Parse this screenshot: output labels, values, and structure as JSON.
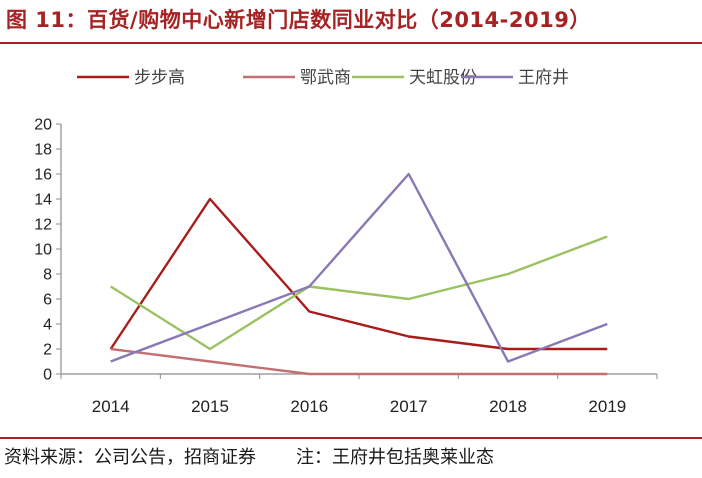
{
  "header": {
    "title": "图 11：百货/购物中心新增门店数同业对比（2014-2019）"
  },
  "footer": {
    "source": "资料来源：公司公告，招商证券",
    "note": "注：王府井包括奥莱业态"
  },
  "chart_data": {
    "type": "line",
    "title": "图 11：百货/购物中心新增门店数同业对比（2014-2019）",
    "x": [
      "2014",
      "2015",
      "2016",
      "2017",
      "2018",
      "2019"
    ],
    "ylim": [
      0,
      20
    ],
    "yticks": [
      "0",
      "2",
      "4",
      "6",
      "8",
      "10",
      "12",
      "14",
      "16",
      "18",
      "20"
    ],
    "grid": false,
    "legend_position": "top",
    "series": [
      {
        "name": "步步高",
        "color": "#a81c1c",
        "values": [
          2,
          14,
          5,
          3,
          2,
          2
        ]
      },
      {
        "name": "鄂武商",
        "color": "#c07070",
        "values": [
          2,
          1,
          0,
          0,
          0,
          0
        ]
      },
      {
        "name": "天虹股份",
        "color": "#9ac262",
        "values": [
          7,
          2,
          7,
          6,
          8,
          11
        ]
      },
      {
        "name": "王府井",
        "color": "#8a77b5",
        "values": [
          1,
          4,
          7,
          16,
          1,
          4
        ]
      }
    ]
  }
}
